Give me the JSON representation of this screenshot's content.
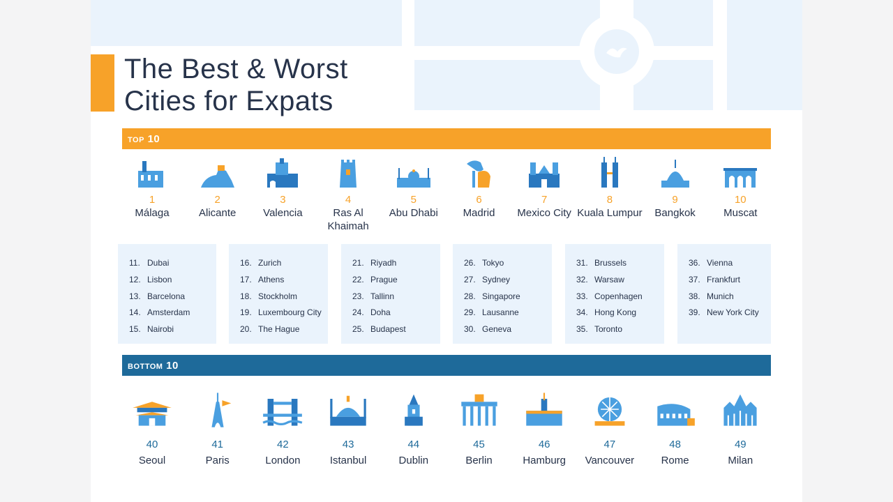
{
  "title": {
    "line1": "The Best & Worst",
    "line2": "Cities for Expats"
  },
  "top_label": "TOP 10",
  "bottom_label": "BOTTOM 10",
  "colors": {
    "orange": "#f7a229",
    "blue": "#1e6a9a",
    "light_blue": "#eaf3fc",
    "icon_blue": "#4a9fe0",
    "text": "#27334a"
  },
  "top10": [
    {
      "rank": "1",
      "name": "Málaga",
      "icon": "malaga-landmark-icon"
    },
    {
      "rank": "2",
      "name": "Alicante",
      "icon": "alicante-castle-icon"
    },
    {
      "rank": "3",
      "name": "Valencia",
      "icon": "valencia-tower-icon"
    },
    {
      "rank": "4",
      "name": "Ras Al Khaimah",
      "icon": "ras-al-khaimah-fort-icon"
    },
    {
      "rank": "5",
      "name": "Abu Dhabi",
      "icon": "abu-dhabi-mosque-icon"
    },
    {
      "rank": "6",
      "name": "Madrid",
      "icon": "madrid-bear-statue-icon"
    },
    {
      "rank": "7",
      "name": "Mexico City",
      "icon": "mexico-city-cathedral-icon"
    },
    {
      "rank": "8",
      "name": "Kuala Lumpur",
      "icon": "petronas-towers-icon"
    },
    {
      "rank": "9",
      "name": "Bangkok",
      "icon": "bangkok-temple-icon"
    },
    {
      "rank": "10",
      "name": "Muscat",
      "icon": "muscat-palace-icon"
    }
  ],
  "lists": [
    [
      [
        "11.",
        "Dubai"
      ],
      [
        "12.",
        "Lisbon"
      ],
      [
        "13.",
        "Barcelona"
      ],
      [
        "14.",
        "Amsterdam"
      ],
      [
        "15.",
        "Nairobi"
      ]
    ],
    [
      [
        "16.",
        "Zurich"
      ],
      [
        "17.",
        "Athens"
      ],
      [
        "18.",
        "Stockholm"
      ],
      [
        "19.",
        "Luxembourg City"
      ],
      [
        "20.",
        "The Hague"
      ]
    ],
    [
      [
        "21.",
        "Riyadh"
      ],
      [
        "22.",
        "Prague"
      ],
      [
        "23.",
        "Tallinn"
      ],
      [
        "24.",
        "Doha"
      ],
      [
        "25.",
        "Budapest"
      ]
    ],
    [
      [
        "26.",
        "Tokyo"
      ],
      [
        "27.",
        "Sydney"
      ],
      [
        "28.",
        "Singapore"
      ],
      [
        "29.",
        "Lausanne"
      ],
      [
        "30.",
        "Geneva"
      ]
    ],
    [
      [
        "31.",
        "Brussels"
      ],
      [
        "32.",
        "Warsaw"
      ],
      [
        "33.",
        "Copenhagen"
      ],
      [
        "34.",
        "Hong Kong"
      ],
      [
        "35.",
        "Toronto"
      ]
    ],
    [
      [
        "36.",
        "Vienna"
      ],
      [
        "37.",
        "Frankfurt"
      ],
      [
        "38.",
        "Munich"
      ],
      [
        "39.",
        "New York City"
      ]
    ]
  ],
  "bottom10": [
    {
      "rank": "40",
      "name": "Seoul",
      "icon": "seoul-gate-icon"
    },
    {
      "rank": "41",
      "name": "Paris",
      "icon": "eiffel-tower-icon"
    },
    {
      "rank": "42",
      "name": "London",
      "icon": "tower-bridge-icon"
    },
    {
      "rank": "43",
      "name": "Istanbul",
      "icon": "istanbul-mosque-icon"
    },
    {
      "rank": "44",
      "name": "Dublin",
      "icon": "dublin-church-icon"
    },
    {
      "rank": "45",
      "name": "Berlin",
      "icon": "brandenburg-gate-icon"
    },
    {
      "rank": "46",
      "name": "Hamburg",
      "icon": "hamburg-town-hall-icon"
    },
    {
      "rank": "47",
      "name": "Vancouver",
      "icon": "science-world-dome-icon"
    },
    {
      "rank": "48",
      "name": "Rome",
      "icon": "colosseum-icon"
    },
    {
      "rank": "49",
      "name": "Milan",
      "icon": "milan-cathedral-icon"
    }
  ]
}
